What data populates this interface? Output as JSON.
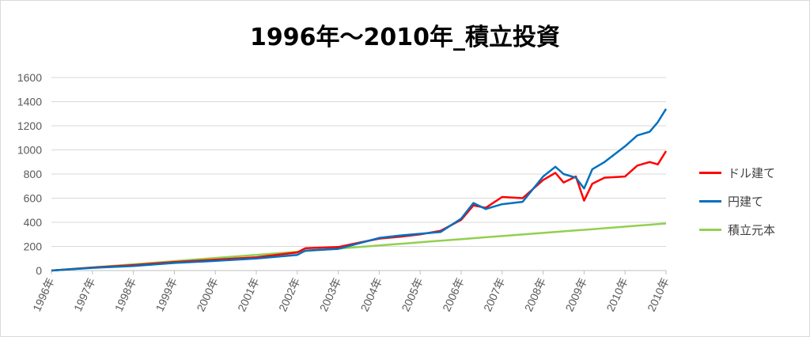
{
  "chart_data": {
    "type": "line",
    "title": "1996年～2010年_積立投資",
    "xlabel": "",
    "ylabel": "",
    "ylim": [
      0,
      1600
    ],
    "yticks": [
      0,
      200,
      400,
      600,
      800,
      1000,
      1200,
      1400,
      1600
    ],
    "x_tick_labels": [
      "1996年",
      "1997年",
      "1998年",
      "1999年",
      "2000年",
      "2001年",
      "2002年",
      "2003年",
      "2004年",
      "2005年",
      "2006年",
      "2007年",
      "2008年",
      "2009年",
      "2010年",
      "2010年"
    ],
    "x": [
      1996.0,
      1997.0,
      1998.0,
      1999.0,
      2000.0,
      2001.0,
      2002.0,
      2002.2,
      2003.0,
      2003.5,
      2004.0,
      2004.5,
      2005.0,
      2005.5,
      2006.0,
      2006.3,
      2006.6,
      2007.0,
      2007.5,
      2008.0,
      2008.3,
      2008.5,
      2008.8,
      2009.0,
      2009.2,
      2009.5,
      2010.0,
      2010.3,
      2010.6,
      2010.8,
      2011.0
    ],
    "grid": true,
    "legend_position": "right",
    "series": [
      {
        "name": "ドル建て",
        "color": "#ff0000",
        "values": [
          0,
          25,
          45,
          70,
          90,
          110,
          150,
          185,
          195,
          230,
          265,
          280,
          300,
          330,
          420,
          540,
          520,
          610,
          600,
          750,
          810,
          730,
          780,
          580,
          720,
          770,
          780,
          870,
          900,
          880,
          990
        ]
      },
      {
        "name": "円建て",
        "color": "#0070c0",
        "values": [
          0,
          22,
          38,
          63,
          80,
          100,
          130,
          165,
          180,
          225,
          270,
          290,
          305,
          320,
          430,
          560,
          510,
          550,
          570,
          780,
          860,
          800,
          770,
          680,
          840,
          900,
          1030,
          1120,
          1150,
          1230,
          1340
        ]
      },
      {
        "name": "積立元本",
        "color": "#92d050",
        "values": [
          0,
          26,
          52,
          78,
          104,
          130,
          156,
          161,
          182,
          195,
          208,
          221,
          234,
          247,
          260,
          268,
          276,
          286,
          299,
          312,
          320,
          325,
          333,
          338,
          343,
          351,
          364,
          372,
          380,
          385,
          390
        ]
      }
    ]
  }
}
